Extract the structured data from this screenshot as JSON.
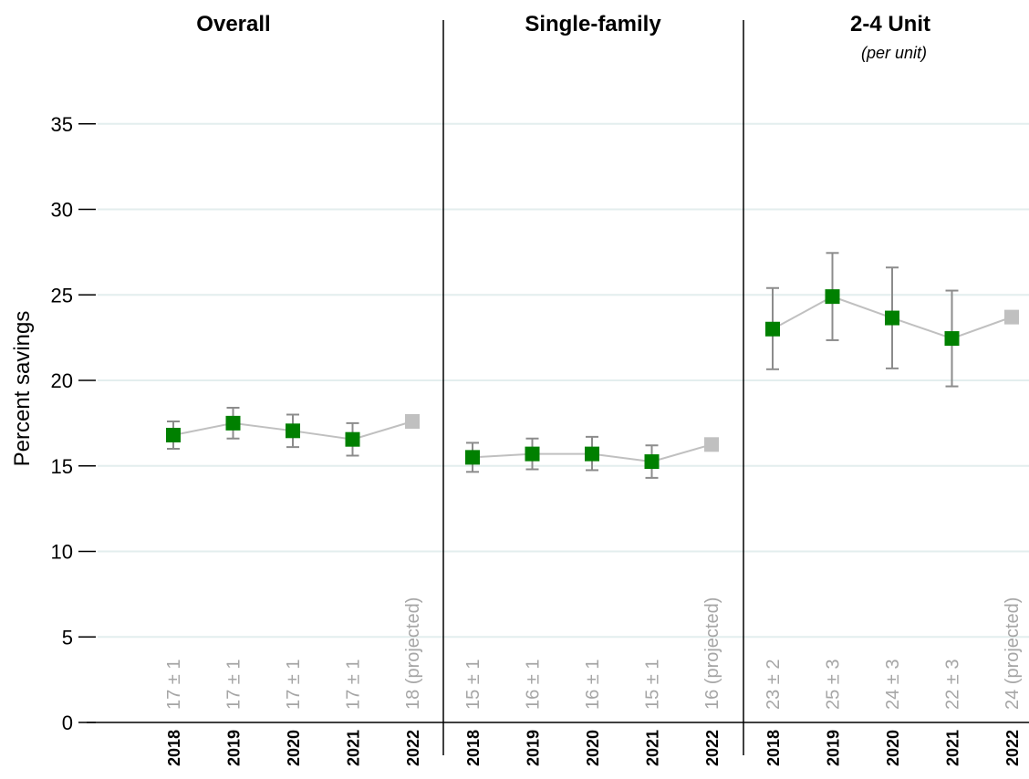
{
  "chart_data": {
    "type": "scatter",
    "ylabel": "Percent savings",
    "ylim": [
      0,
      38
    ],
    "yticks": [
      0,
      5,
      10,
      15,
      20,
      25,
      30,
      35
    ],
    "grid": "horizontal",
    "colors": {
      "measured": "#008000",
      "projected": "#c0c0c0",
      "error_bar": "#8c8c8c",
      "connector": "#c0c0c0",
      "label": "#a6a6a6",
      "gridline": "#e3eeee"
    },
    "panels": [
      {
        "title": "Overall",
        "subtitle": "",
        "categories": [
          "2018",
          "2019",
          "2020",
          "2021",
          "2022"
        ],
        "values": [
          16.8,
          17.5,
          17.05,
          16.55,
          17.6
        ],
        "error_low": [
          16.0,
          16.6,
          16.1,
          15.6,
          null
        ],
        "error_high": [
          17.6,
          18.4,
          18.0,
          17.5,
          null
        ],
        "projected": [
          false,
          false,
          false,
          false,
          true
        ],
        "labels": [
          "17 ± 1",
          "17 ± 1",
          "17 ± 1",
          "17 ± 1",
          "18 (projected)"
        ]
      },
      {
        "title": "Single-family",
        "subtitle": "",
        "categories": [
          "2018",
          "2019",
          "2020",
          "2021",
          "2022"
        ],
        "values": [
          15.5,
          15.7,
          15.7,
          15.25,
          16.25
        ],
        "error_low": [
          14.65,
          14.8,
          14.75,
          14.3,
          null
        ],
        "error_high": [
          16.35,
          16.6,
          16.7,
          16.2,
          null
        ],
        "projected": [
          false,
          false,
          false,
          false,
          true
        ],
        "labels": [
          "15 ± 1",
          "16 ± 1",
          "16 ± 1",
          "15 ± 1",
          "16 (projected)"
        ]
      },
      {
        "title": "2-4 Unit",
        "subtitle": "(per unit)",
        "categories": [
          "2018",
          "2019",
          "2020",
          "2021",
          "2022"
        ],
        "values": [
          23.0,
          24.9,
          23.65,
          22.45,
          23.7
        ],
        "error_low": [
          20.65,
          22.35,
          20.7,
          19.65,
          null
        ],
        "error_high": [
          25.4,
          27.45,
          26.6,
          25.25,
          null
        ],
        "projected": [
          false,
          false,
          false,
          false,
          true
        ],
        "labels": [
          "23 ± 2",
          "25 ± 3",
          "24 ± 3",
          "22 ± 3",
          "24 (projected)"
        ]
      }
    ]
  }
}
